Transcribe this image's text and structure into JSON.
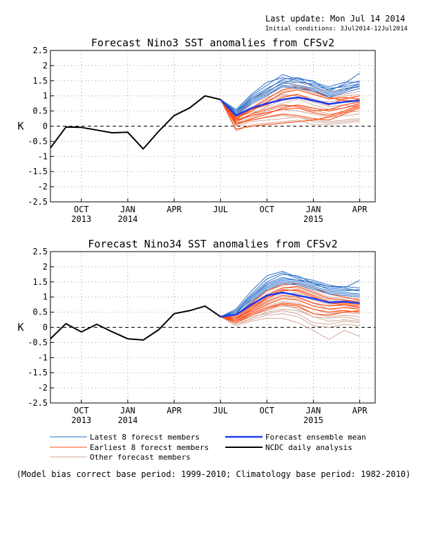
{
  "header": {
    "last_update": "Last update: Mon Jul 14 2014",
    "initial_conditions": "Initial conditions: 3Jul2014-12Jul2014"
  },
  "colors": {
    "latest": "#2a6fc9",
    "earliest": "#ff4c14",
    "other": "#d2a89a",
    "mean": "#1f3bf0",
    "analysis": "#000000",
    "grid": "#999999"
  },
  "legend": [
    {
      "label": "Latest 8 forecst members",
      "color": "#2a6fc9",
      "width": 1
    },
    {
      "label": "Earliest 8 forecst members",
      "color": "#ff4c14",
      "width": 1
    },
    {
      "label": "Other forecast members",
      "color": "#d2a89a",
      "width": 1
    },
    {
      "label": "Forecast ensemble mean",
      "color": "#1f3bf0",
      "width": 2.5
    },
    {
      "label": "NCDC daily analysis",
      "color": "#000000",
      "width": 2
    }
  ],
  "footnote": "(Model bias correct base period: 1999-2010; Climatology base period: 1982-2010)",
  "chart_data": [
    {
      "type": "line",
      "title": "Forecast Nino3 SST anomalies from CFSv2",
      "ylabel": "K",
      "ylim": [
        -2.5,
        2.5
      ],
      "yticks": [
        "2.5",
        "2",
        "1.5",
        "1",
        "0.5",
        "0",
        "-0.5",
        "-1",
        "-1.5",
        "-2",
        "-2.5"
      ],
      "xticks": [
        {
          "t": 2,
          "month": "OCT",
          "year": "2013"
        },
        {
          "t": 5,
          "month": "JAN",
          "year": "2014"
        },
        {
          "t": 8,
          "month": "APR",
          "year": ""
        },
        {
          "t": 11,
          "month": "JUL",
          "year": ""
        },
        {
          "t": 14,
          "month": "OCT",
          "year": ""
        },
        {
          "t": 17,
          "month": "JAN",
          "year": "2015"
        },
        {
          "t": 20,
          "month": "APR",
          "year": ""
        }
      ],
      "xlim": [
        0,
        21
      ],
      "grid": true,
      "analysis": {
        "name": "NCDC daily analysis",
        "x": [
          0,
          1,
          2,
          3,
          4,
          5,
          6,
          7,
          8,
          9,
          10,
          11
        ],
        "y": [
          -0.72,
          -0.03,
          -0.04,
          -0.13,
          -0.22,
          -0.2,
          -0.75,
          -0.17,
          0.35,
          0.6,
          1.0,
          0.88
        ]
      },
      "forecast_x": [
        11,
        12,
        13,
        14,
        15,
        16,
        17,
        18,
        19,
        20
      ],
      "ensemble_mean": [
        0.88,
        0.35,
        0.6,
        0.75,
        0.88,
        0.95,
        0.85,
        0.73,
        0.8,
        0.85
      ],
      "latest_members": [
        [
          0.88,
          0.45,
          0.9,
          1.2,
          1.55,
          1.6,
          1.45,
          1.3,
          1.45,
          1.45
        ],
        [
          0.88,
          0.5,
          1.0,
          1.35,
          1.7,
          1.55,
          1.5,
          1.15,
          1.4,
          1.75
        ],
        [
          0.88,
          0.4,
          0.85,
          1.1,
          1.45,
          1.35,
          1.25,
          1.05,
          1.2,
          1.4
        ],
        [
          0.88,
          0.55,
          1.05,
          1.45,
          1.6,
          1.5,
          1.35,
          1.2,
          1.35,
          1.5
        ],
        [
          0.88,
          0.35,
          0.75,
          1.0,
          1.3,
          1.25,
          1.15,
          1.0,
          1.15,
          1.35
        ],
        [
          0.88,
          0.45,
          0.95,
          1.25,
          1.5,
          1.45,
          1.4,
          1.25,
          1.3,
          1.4
        ],
        [
          0.88,
          0.5,
          0.9,
          1.15,
          1.4,
          1.6,
          1.3,
          1.1,
          1.25,
          1.3
        ],
        [
          0.88,
          0.4,
          0.8,
          1.05,
          1.35,
          1.3,
          1.2,
          0.95,
          1.1,
          1.25
        ]
      ],
      "earliest_members": [
        [
          0.88,
          0.2,
          0.35,
          0.45,
          0.55,
          0.6,
          0.45,
          0.35,
          0.5,
          0.7
        ],
        [
          0.88,
          0.1,
          0.2,
          0.3,
          0.4,
          0.35,
          0.25,
          0.2,
          0.4,
          0.6
        ],
        [
          0.88,
          -0.1,
          0.0,
          0.05,
          0.1,
          0.15,
          0.2,
          0.3,
          0.45,
          0.65
        ],
        [
          0.88,
          0.3,
          0.55,
          0.7,
          0.95,
          1.05,
          0.85,
          0.7,
          0.9,
          1.0
        ],
        [
          0.88,
          0.25,
          0.5,
          0.8,
          1.1,
          1.2,
          1.05,
          0.9,
          0.95,
          0.9
        ],
        [
          0.88,
          0.15,
          0.4,
          0.55,
          0.7,
          0.65,
          0.5,
          0.55,
          0.7,
          0.8
        ],
        [
          0.88,
          0.05,
          0.25,
          0.4,
          0.6,
          0.7,
          0.6,
          0.5,
          0.6,
          0.75
        ],
        [
          0.88,
          0.2,
          0.6,
          0.9,
          1.2,
          1.3,
          1.15,
          0.95,
          0.85,
          0.85
        ]
      ],
      "other_members": [
        [
          0.88,
          0.3,
          0.45,
          0.6,
          0.75,
          0.9,
          0.7,
          0.55,
          0.6,
          0.7
        ],
        [
          0.88,
          0.15,
          0.35,
          0.5,
          0.65,
          0.7,
          0.55,
          0.4,
          0.45,
          0.5
        ],
        [
          0.88,
          0.05,
          0.2,
          0.3,
          0.35,
          0.3,
          0.2,
          0.15,
          0.2,
          0.25
        ],
        [
          0.88,
          -0.15,
          0.05,
          0.1,
          0.15,
          0.2,
          0.05,
          0.05,
          0.1,
          0.15
        ],
        [
          0.88,
          0.4,
          0.7,
          0.95,
          1.15,
          1.25,
          1.1,
          0.95,
          1.0,
          1.05
        ],
        [
          0.88,
          0.25,
          0.55,
          0.8,
          1.0,
          1.05,
          0.9,
          0.75,
          0.8,
          0.9
        ],
        [
          0.88,
          0.35,
          0.8,
          1.05,
          1.3,
          1.35,
          1.2,
          1.0,
          1.05,
          1.15
        ],
        [
          0.88,
          0.1,
          0.3,
          0.45,
          0.55,
          0.5,
          0.4,
          0.3,
          0.35,
          0.4
        ],
        [
          0.88,
          0.2,
          0.4,
          0.65,
          0.85,
          0.95,
          0.8,
          0.65,
          0.7,
          0.6
        ],
        [
          0.88,
          0.45,
          0.85,
          1.15,
          1.4,
          1.45,
          1.3,
          1.15,
          1.2,
          1.3
        ],
        [
          0.88,
          0.0,
          0.15,
          0.2,
          0.25,
          0.3,
          0.15,
          0.1,
          0.15,
          0.2
        ],
        [
          0.88,
          0.3,
          0.6,
          0.85,
          1.05,
          1.0,
          0.85,
          0.8,
          0.9,
          1.0
        ]
      ]
    },
    {
      "type": "line",
      "title": "Forecast Nino34 SST anomalies from CFSv2",
      "ylabel": "K",
      "ylim": [
        -2.5,
        2.5
      ],
      "yticks": [
        "2.5",
        "2",
        "1.5",
        "1",
        "0.5",
        "0",
        "-0.5",
        "-1",
        "-1.5",
        "-2",
        "-2.5"
      ],
      "xticks": [
        {
          "t": 2,
          "month": "OCT",
          "year": "2013"
        },
        {
          "t": 5,
          "month": "JAN",
          "year": "2014"
        },
        {
          "t": 8,
          "month": "APR",
          "year": ""
        },
        {
          "t": 11,
          "month": "JUL",
          "year": ""
        },
        {
          "t": 14,
          "month": "OCT",
          "year": ""
        },
        {
          "t": 17,
          "month": "JAN",
          "year": "2015"
        },
        {
          "t": 20,
          "month": "APR",
          "year": ""
        }
      ],
      "xlim": [
        0,
        21
      ],
      "grid": true,
      "analysis": {
        "name": "NCDC daily analysis",
        "x": [
          0,
          1,
          2,
          3,
          4,
          5,
          6,
          7,
          8,
          9,
          10,
          11
        ],
        "y": [
          -0.38,
          0.12,
          -0.15,
          0.1,
          -0.15,
          -0.38,
          -0.42,
          -0.08,
          0.45,
          0.55,
          0.7,
          0.35
        ]
      },
      "forecast_x": [
        11,
        12,
        13,
        14,
        15,
        16,
        17,
        18,
        19,
        20
      ],
      "ensemble_mean": [
        0.35,
        0.42,
        0.75,
        1.05,
        1.15,
        1.05,
        0.95,
        0.82,
        0.85,
        0.8
      ],
      "latest_members": [
        [
          0.35,
          0.55,
          1.1,
          1.6,
          1.8,
          1.6,
          1.45,
          1.35,
          1.35,
          1.3
        ],
        [
          0.35,
          0.6,
          1.2,
          1.7,
          1.85,
          1.65,
          1.55,
          1.4,
          1.3,
          1.55
        ],
        [
          0.35,
          0.5,
          1.0,
          1.45,
          1.65,
          1.55,
          1.4,
          1.3,
          1.25,
          1.2
        ],
        [
          0.35,
          0.45,
          0.95,
          1.35,
          1.55,
          1.5,
          1.35,
          1.2,
          1.15,
          1.1
        ],
        [
          0.35,
          0.55,
          1.05,
          1.5,
          1.75,
          1.7,
          1.45,
          1.25,
          1.2,
          1.25
        ],
        [
          0.35,
          0.5,
          0.9,
          1.3,
          1.5,
          1.45,
          1.3,
          1.15,
          1.1,
          1.05
        ],
        [
          0.35,
          0.4,
          0.85,
          1.25,
          1.45,
          1.4,
          1.25,
          1.1,
          1.05,
          1.0
        ],
        [
          0.35,
          0.5,
          1.0,
          1.4,
          1.6,
          1.55,
          1.5,
          1.35,
          1.3,
          1.2
        ]
      ],
      "earliest_members": [
        [
          0.35,
          0.3,
          0.55,
          0.85,
          1.05,
          1.0,
          0.8,
          0.7,
          0.75,
          0.7
        ],
        [
          0.35,
          0.2,
          0.45,
          0.65,
          0.8,
          0.75,
          0.6,
          0.5,
          0.55,
          0.5
        ],
        [
          0.35,
          0.35,
          0.7,
          1.05,
          1.3,
          1.35,
          1.15,
          0.95,
          0.9,
          0.85
        ],
        [
          0.35,
          0.25,
          0.6,
          0.95,
          1.2,
          1.25,
          1.05,
          0.85,
          0.8,
          0.75
        ],
        [
          0.35,
          0.15,
          0.4,
          0.6,
          0.75,
          0.7,
          0.45,
          0.4,
          0.5,
          0.55
        ],
        [
          0.35,
          0.4,
          0.8,
          1.2,
          1.4,
          1.45,
          1.3,
          1.1,
          1.0,
          0.9
        ],
        [
          0.35,
          0.3,
          0.65,
          1.0,
          1.25,
          1.2,
          1.0,
          0.8,
          0.75,
          0.65
        ],
        [
          0.35,
          0.2,
          0.5,
          0.75,
          0.95,
          0.9,
          0.7,
          0.6,
          0.65,
          0.6
        ]
      ],
      "other_members": [
        [
          0.35,
          0.25,
          0.5,
          0.7,
          0.85,
          0.8,
          0.6,
          0.45,
          0.5,
          0.45
        ],
        [
          0.35,
          0.1,
          0.3,
          0.5,
          0.6,
          0.55,
          0.35,
          0.2,
          0.25,
          0.2
        ],
        [
          0.35,
          0.05,
          0.2,
          0.3,
          0.3,
          0.15,
          -0.1,
          -0.4,
          -0.1,
          -0.3
        ],
        [
          0.35,
          0.3,
          0.65,
          0.95,
          1.15,
          1.1,
          0.9,
          0.75,
          0.7,
          0.6
        ],
        [
          0.35,
          0.2,
          0.45,
          0.65,
          0.75,
          0.6,
          0.35,
          0.3,
          0.35,
          0.25
        ],
        [
          0.35,
          0.4,
          0.85,
          1.2,
          1.45,
          1.4,
          1.2,
          1.0,
          0.95,
          0.95
        ],
        [
          0.35,
          0.15,
          0.35,
          0.45,
          0.55,
          0.45,
          0.15,
          0.1,
          0.2,
          0.15
        ],
        [
          0.35,
          0.35,
          0.75,
          1.1,
          1.3,
          1.3,
          1.1,
          0.9,
          0.85,
          0.8
        ],
        [
          0.35,
          0.25,
          0.55,
          0.8,
          1.0,
          0.95,
          0.8,
          0.6,
          0.55,
          0.5
        ],
        [
          0.35,
          0.3,
          0.6,
          0.9,
          1.1,
          1.15,
          0.95,
          0.8,
          0.8,
          0.75
        ],
        [
          0.35,
          0.1,
          0.25,
          0.4,
          0.45,
          0.35,
          0.05,
          0.0,
          0.1,
          0.05
        ],
        [
          0.35,
          0.2,
          0.4,
          0.55,
          0.7,
          0.65,
          0.45,
          0.35,
          0.4,
          0.35
        ]
      ]
    }
  ]
}
